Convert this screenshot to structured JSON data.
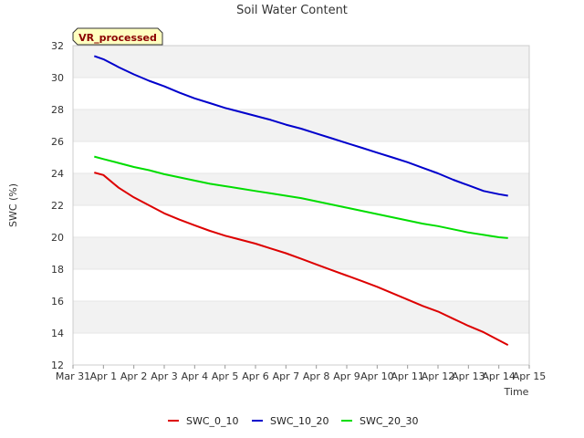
{
  "chart_data": {
    "type": "line",
    "title": "Soil Water Content",
    "xlabel": "Time",
    "ylabel": "SWC (%)",
    "badge": "VR_processed",
    "ylim": [
      12,
      32
    ],
    "yticks": [
      12,
      14,
      16,
      18,
      20,
      22,
      24,
      26,
      28,
      30,
      32
    ],
    "xlim": [
      0,
      15
    ],
    "xticks": [
      {
        "v": 0,
        "label": "Mar 31"
      },
      {
        "v": 1,
        "label": "Apr 1"
      },
      {
        "v": 2,
        "label": "Apr 2"
      },
      {
        "v": 3,
        "label": "Apr 3"
      },
      {
        "v": 4,
        "label": "Apr 4"
      },
      {
        "v": 5,
        "label": "Apr 5"
      },
      {
        "v": 6,
        "label": "Apr 6"
      },
      {
        "v": 7,
        "label": "Apr 7"
      },
      {
        "v": 8,
        "label": "Apr 8"
      },
      {
        "v": 9,
        "label": "Apr 9"
      },
      {
        "v": 10,
        "label": "Apr 10"
      },
      {
        "v": 11,
        "label": "Apr 11"
      },
      {
        "v": 12,
        "label": "Apr 12"
      },
      {
        "v": 13,
        "label": "Apr 13"
      },
      {
        "v": 14,
        "label": "Apr 14"
      },
      {
        "v": 15,
        "label": "Apr 15"
      }
    ],
    "x": [
      0.7,
      1.0,
      1.5,
      2.0,
      2.5,
      3.0,
      3.5,
      4.0,
      4.5,
      5.0,
      5.5,
      6.0,
      6.5,
      7.0,
      7.5,
      8.0,
      8.5,
      9.0,
      9.5,
      10.0,
      10.5,
      11.0,
      11.5,
      12.0,
      12.5,
      13.0,
      13.5,
      14.0,
      14.3
    ],
    "series": [
      {
        "name": "SWC_0_10",
        "color": "#dd0000",
        "values": [
          24.05,
          23.9,
          23.1,
          22.5,
          22.0,
          21.5,
          21.1,
          20.75,
          20.4,
          20.1,
          19.85,
          19.6,
          19.3,
          19.0,
          18.65,
          18.3,
          17.95,
          17.6,
          17.25,
          16.9,
          16.5,
          16.1,
          15.7,
          15.35,
          14.9,
          14.45,
          14.05,
          13.55,
          13.25
        ]
      },
      {
        "name": "SWC_10_20",
        "color": "#0000cc",
        "values": [
          31.35,
          31.15,
          30.65,
          30.2,
          29.8,
          29.45,
          29.05,
          28.7,
          28.4,
          28.1,
          27.85,
          27.6,
          27.35,
          27.05,
          26.8,
          26.5,
          26.2,
          25.9,
          25.6,
          25.3,
          25.0,
          24.7,
          24.35,
          24.0,
          23.6,
          23.25,
          22.9,
          22.7,
          22.6
        ]
      },
      {
        "name": "SWC_20_30",
        "color": "#00dd00",
        "values": [
          25.05,
          24.9,
          24.65,
          24.4,
          24.2,
          23.95,
          23.75,
          23.55,
          23.35,
          23.2,
          23.05,
          22.9,
          22.75,
          22.6,
          22.45,
          22.25,
          22.05,
          21.85,
          21.65,
          21.45,
          21.25,
          21.05,
          20.85,
          20.7,
          20.5,
          20.3,
          20.15,
          20.0,
          19.95
        ]
      }
    ]
  }
}
